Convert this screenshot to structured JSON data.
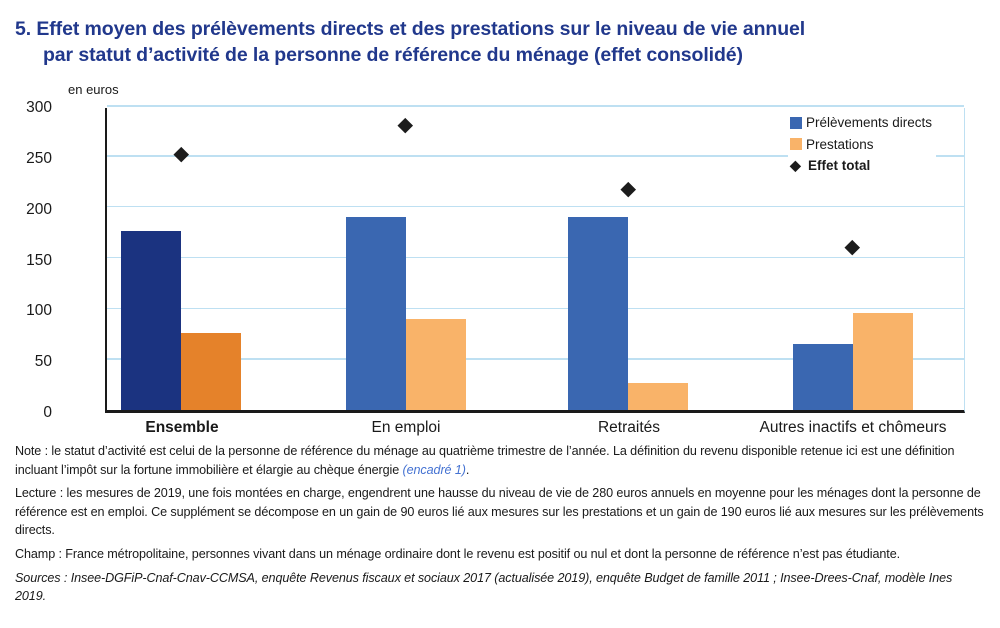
{
  "title": {
    "line1": "5. Effet moyen des prélèvements directs et des prestations sur le niveau de vie annuel",
    "line2": "par statut d’activité de la personne de référence du ménage (effet consolidé)"
  },
  "chart_data": {
    "type": "bar",
    "unit_label": "en euros",
    "categories": [
      "Ensemble",
      "En emploi",
      "Retraités",
      "Autres inactifs et chômeurs"
    ],
    "series": [
      {
        "name": "Prélèvements directs",
        "marker": "square",
        "values": [
          176,
          190,
          190,
          65
        ]
      },
      {
        "name": "Prestations",
        "marker": "square",
        "values": [
          76,
          90,
          27,
          95
        ]
      },
      {
        "name": "Effet total",
        "marker": "diamond",
        "values": [
          252,
          280,
          217,
          160
        ]
      }
    ],
    "ylim": [
      0,
      300
    ],
    "yticks": [
      0,
      50,
      100,
      150,
      200,
      250,
      300
    ],
    "grid": true,
    "legend_position": "top-right",
    "highlight_category_index": 0,
    "group_centers_pct": [
      8.95,
      35.0,
      60.93,
      86.98
    ],
    "colors": {
      "prelevements": "#3A67B1",
      "prelevements_highlight": "#1B3380",
      "prestations": "#F9B369",
      "prestations_highlight": "#E5822A",
      "diamond": "#1c1c1c",
      "grid": "#BEE0F2",
      "title": "#21388C"
    }
  },
  "notes": {
    "note_prefix": "Note : le statut d’activité est celui de la personne de référence du ménage au quatrième trimestre de l’année. La définition du revenu disponible retenue ici est une définition incluant l’impôt sur la fortune immobilière et élargie au chèque énergie ",
    "note_link": "(encadré 1)",
    "note_suffix": ".",
    "lecture": "Lecture : les mesures de 2019, une fois montées en charge, engendrent une hausse du niveau de vie de 280 euros annuels en moyenne pour les ménages dont la personne de référence est en emploi. Ce supplément se décompose en un gain de 90 euros lié aux mesures sur les prestations et un gain de 190 euros lié aux mesures sur les prélèvements directs.",
    "champ": "Champ : France métropolitaine, personnes vivant dans un ménage ordinaire dont le revenu est positif ou nul et dont la personne de référence n’est pas étudiante.",
    "sources": "Sources : Insee-DGFiP-Cnaf-Cnav-CCMSA, enquête Revenus fiscaux et sociaux 2017 (actualisée 2019), enquête Budget de famille 2011 ; Insee-Drees-Cnaf, modèle Ines 2019."
  }
}
